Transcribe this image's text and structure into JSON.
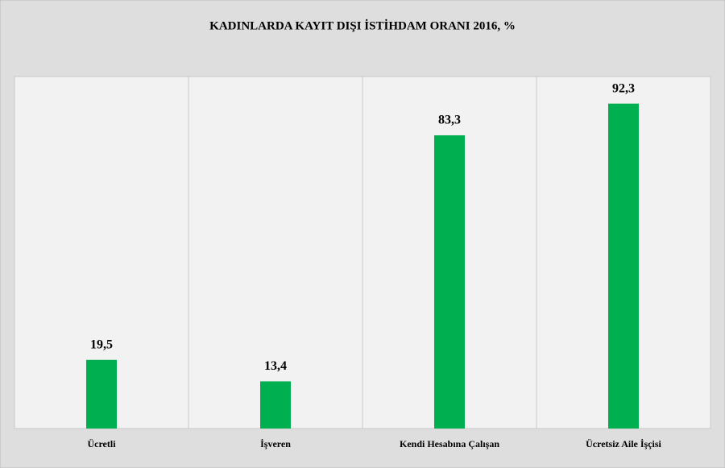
{
  "chart_data": {
    "type": "bar",
    "title": "KADINLARDA KAYIT DIŞI İSTİHDAM ORANI  2016, %",
    "categories": [
      "Ücretli",
      "İşveren",
      "Kendi Hesabına Çalışan",
      "Ücretsiz Aile İşçisi"
    ],
    "values": [
      19.5,
      13.4,
      83.3,
      92.3
    ],
    "value_labels": [
      "19,5",
      "13,4",
      "83,3",
      "92,3"
    ],
    "color": "#00b050",
    "ylim": [
      0,
      100
    ]
  }
}
